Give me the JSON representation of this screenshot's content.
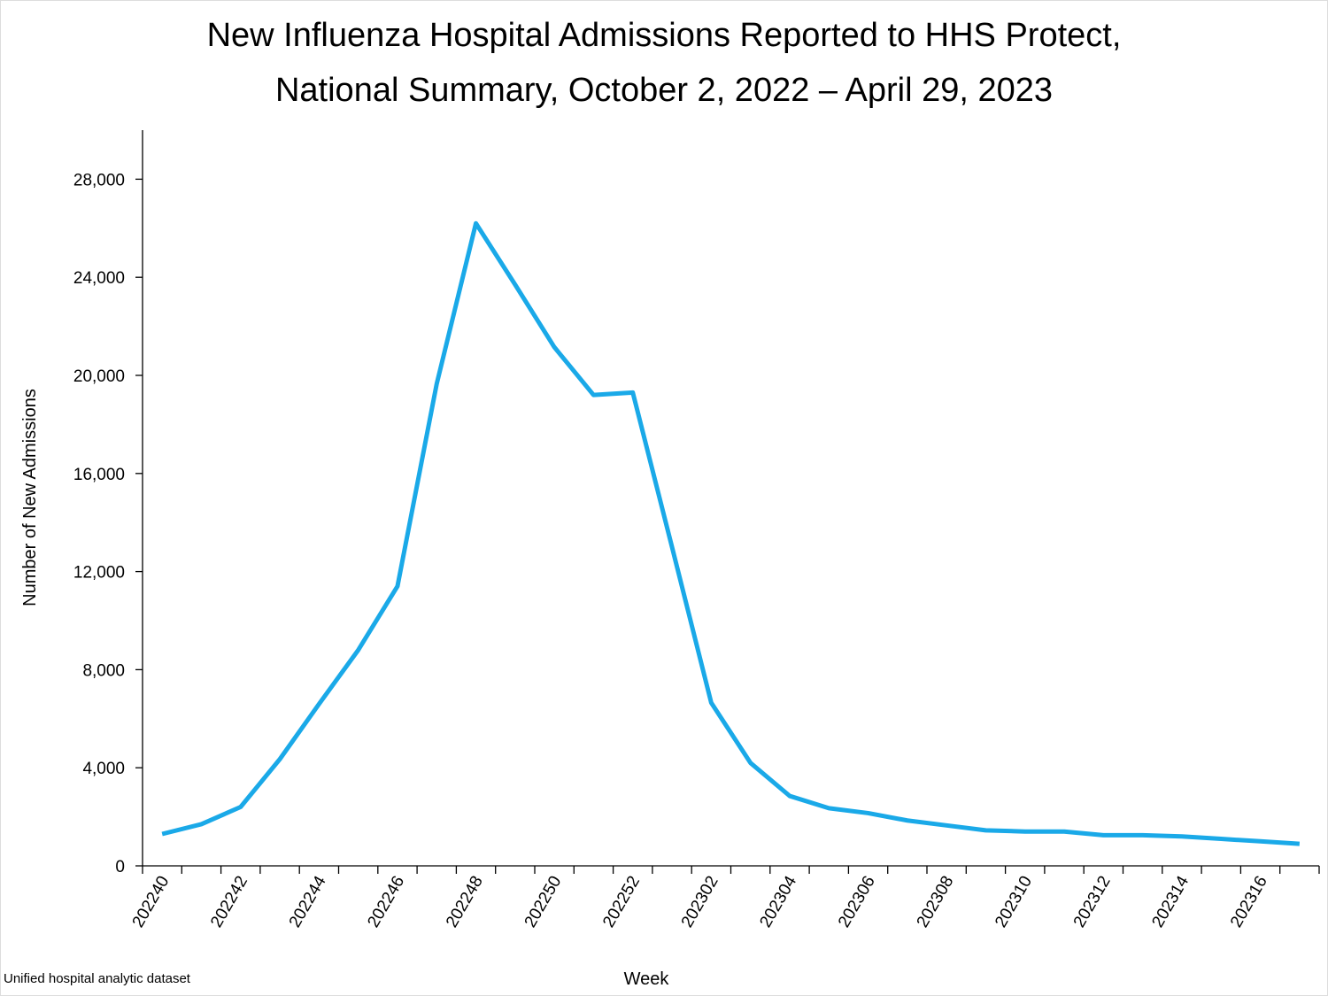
{
  "chart_data": {
    "type": "line",
    "title": [
      "New Influenza Hospital Admissions Reported to HHS Protect,",
      "National Summary, October 2, 2022 – April 29, 2023"
    ],
    "x_label": "Week",
    "y_label": "Number of New Admissions",
    "source": "Unified hospital analytic dataset",
    "categories": [
      "202240",
      null,
      "202242",
      null,
      "202244",
      null,
      "202246",
      null,
      "202248",
      null,
      "202250",
      null,
      "202252",
      null,
      "202302",
      null,
      "202304",
      null,
      "202306",
      null,
      "202308",
      null,
      "202310",
      null,
      "202312",
      null,
      "202314",
      null,
      "202316",
      null
    ],
    "series": [
      {
        "name": "New Admissions",
        "color": "#1aa9e8",
        "values": [
          1300,
          1700,
          2400,
          4350,
          6600,
          8800,
          11400,
          19650,
          26200,
          23700,
          21150,
          19200,
          19300,
          13000,
          6650,
          4200,
          2850,
          2350,
          2150,
          1850,
          1650,
          1450,
          1400,
          1400,
          1250,
          1250,
          1200,
          1100,
          1000,
          900
        ]
      }
    ],
    "ylim": [
      0,
      30000
    ],
    "yticks": [
      0,
      {
        "value": 4000,
        "label": "4,000"
      },
      {
        "value": 8000,
        "label": "8,000"
      },
      {
        "value": 12000,
        "label": "12,000"
      },
      {
        "value": 16000,
        "label": "16,000"
      },
      {
        "value": 20000,
        "label": "20,000"
      },
      {
        "value": 24000,
        "label": "24,000"
      },
      {
        "value": 28000,
        "label": "28,000"
      }
    ]
  }
}
